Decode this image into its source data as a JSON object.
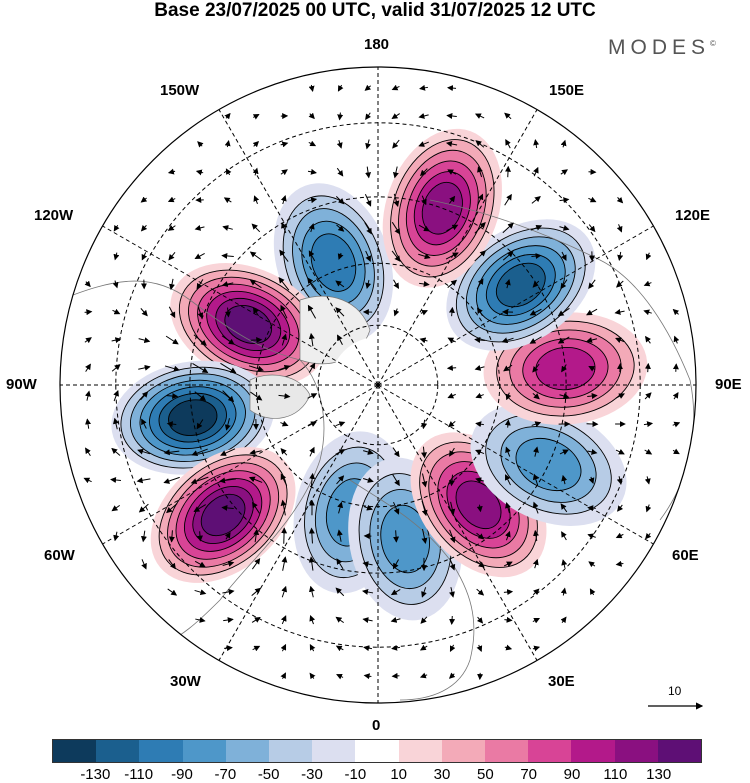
{
  "title": "Base 23/07/2025 00 UTC, valid 31/07/2025 12 UTC",
  "brand": "MODES",
  "brand_mark": "©",
  "longitude_labels": {
    "top": "180",
    "bottom": "0",
    "left": "90W",
    "right": "90E",
    "upper_left_1": "150W",
    "upper_left_2": "120W",
    "lower_left_1": "60W",
    "lower_left_2": "30W",
    "upper_right_1": "150E",
    "upper_right_2": "120E",
    "lower_right_1": "60E",
    "lower_right_2": "30E"
  },
  "reference_vector": "10",
  "colorbar": {
    "ticks": [
      "-130",
      "-110",
      "-90",
      "-70",
      "-50",
      "-30",
      "-10",
      "10",
      "30",
      "50",
      "70",
      "90",
      "110",
      "130"
    ],
    "colors": [
      "#0d3a5c",
      "#1b5f8e",
      "#2e7cb4",
      "#4e97c9",
      "#7fb1d9",
      "#b7cce6",
      "#dcdff0",
      "#ffffff",
      "#f9d4d8",
      "#f3aab8",
      "#ea7aa4",
      "#d84496",
      "#b3198a",
      "#8a1080",
      "#5e0f75"
    ]
  },
  "anomalies": [
    {
      "lon_deg": -160,
      "lat_deg": 58,
      "sign": "negative",
      "strength": 0.6
    },
    {
      "lon_deg": -115,
      "lat_deg": 55,
      "sign": "positive",
      "strength": 1.0
    },
    {
      "lon_deg": -80,
      "lat_deg": 45,
      "sign": "negative",
      "strength": 1.0
    },
    {
      "lon_deg": -50,
      "lat_deg": 42,
      "sign": "positive",
      "strength": 0.95
    },
    {
      "lon_deg": -12,
      "lat_deg": 58,
      "sign": "negative",
      "strength": 0.45
    },
    {
      "lon_deg": 10,
      "lat_deg": 52,
      "sign": "negative",
      "strength": 0.45
    },
    {
      "lon_deg": 40,
      "lat_deg": 52,
      "sign": "positive",
      "strength": 0.8
    },
    {
      "lon_deg": 65,
      "lat_deg": 45,
      "sign": "negative",
      "strength": 0.55
    },
    {
      "lon_deg": 95,
      "lat_deg": 45,
      "sign": "positive",
      "strength": 0.6
    },
    {
      "lon_deg": 125,
      "lat_deg": 48,
      "sign": "negative",
      "strength": 0.75
    },
    {
      "lon_deg": 160,
      "lat_deg": 45,
      "sign": "positive",
      "strength": 0.75
    }
  ]
}
